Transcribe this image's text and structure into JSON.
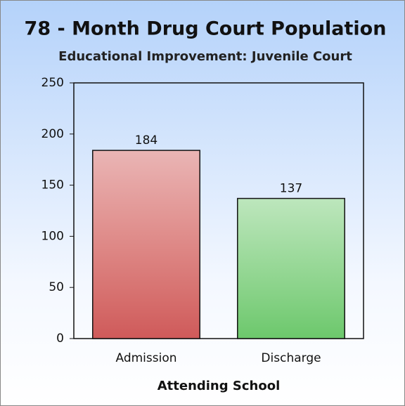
{
  "chart_data": {
    "type": "bar",
    "title": "78 - Month Drug Court Population",
    "subtitle": "Educational Improvement:  Juvenile Court",
    "x_label": "Attending School",
    "categories": [
      "Admission",
      "Discharge"
    ],
    "values": [
      184,
      137
    ],
    "colors": [
      "#cf5a5a",
      "#6cc86c"
    ],
    "ylim": [
      0,
      250
    ],
    "yticks": [
      0,
      50,
      100,
      150,
      200,
      250
    ],
    "grid": false
  }
}
